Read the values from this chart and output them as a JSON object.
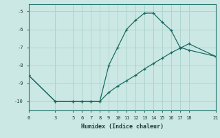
{
  "xlabel": "Humidex (Indice chaleur)",
  "bg_color": "#cce8e4",
  "line_color": "#1a6b63",
  "grid_color": "#aed4ce",
  "xticks": [
    0,
    3,
    5,
    6,
    7,
    8,
    9,
    10,
    11,
    12,
    13,
    14,
    15,
    16,
    17,
    18,
    21
  ],
  "yticks": [
    -10,
    -9,
    -8,
    -7,
    -6,
    -5
  ],
  "xlim": [
    0,
    21
  ],
  "ylim": [
    -10.5,
    -4.6
  ],
  "line1_x": [
    0,
    3,
    5,
    6,
    7,
    8,
    9,
    10,
    11,
    12,
    13,
    14,
    15,
    16,
    17,
    18,
    21
  ],
  "line1_y": [
    -8.55,
    -10.0,
    -10.0,
    -10.0,
    -10.0,
    -10.0,
    -8.0,
    -7.0,
    -6.0,
    -5.5,
    -5.1,
    -5.1,
    -5.6,
    -6.05,
    -7.0,
    -7.15,
    -7.5
  ],
  "line2_x": [
    0,
    3,
    5,
    6,
    7,
    8,
    9,
    10,
    11,
    12,
    13,
    14,
    15,
    16,
    17,
    18,
    21
  ],
  "line2_y": [
    -8.55,
    -10.0,
    -10.0,
    -10.0,
    -10.0,
    -10.0,
    -9.5,
    -9.15,
    -8.85,
    -8.55,
    -8.2,
    -7.9,
    -7.6,
    -7.3,
    -7.05,
    -6.8,
    -7.5
  ]
}
